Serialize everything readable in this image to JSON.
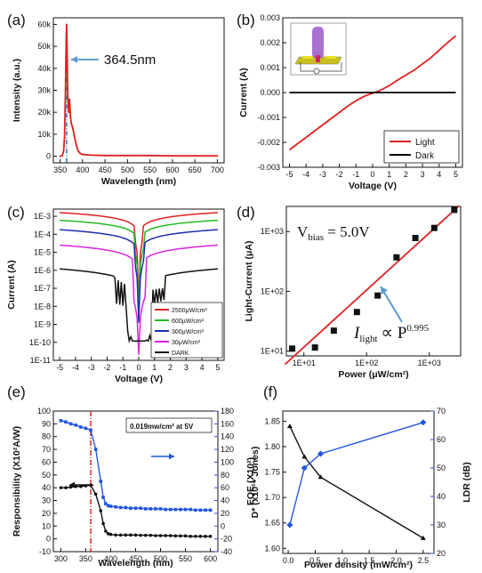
{
  "chart_data": [
    {
      "id": "a",
      "panel_label": "(a)",
      "type": "line",
      "xlabel": "Wavelength (nm)",
      "ylabel": "Intensity (a.u.)",
      "xlim": [
        335,
        715
      ],
      "ylim": [
        -3000,
        63000
      ],
      "x_ticks": [
        350,
        400,
        450,
        500,
        550,
        600,
        650,
        700
      ],
      "y_ticks": [
        0,
        10000,
        20000,
        30000,
        40000,
        50000,
        60000
      ],
      "y_tick_labels": [
        "0",
        "10k",
        "20k",
        "30k",
        "40k",
        "50k",
        "60k"
      ],
      "annotation": "364.5nm",
      "peak_x": 364.5,
      "colors": {
        "line": "#e02020",
        "peak_marker": "#3a78c8",
        "arrow": "#5b9bd5"
      },
      "series": [
        {
          "x": [
            350,
            355,
            358,
            360,
            362,
            363.5,
            364.5,
            365.5,
            367,
            369,
            371,
            373,
            375,
            378,
            382,
            386,
            390,
            395,
            400,
            420,
            450,
            500,
            550,
            600,
            650,
            700
          ],
          "y": [
            0,
            300,
            2500,
            9000,
            30000,
            52000,
            60000,
            50000,
            28000,
            20000,
            26000,
            18000,
            15000,
            13000,
            9000,
            5000,
            2500,
            1200,
            800,
            500,
            300,
            300,
            300,
            200,
            200,
            200
          ]
        }
      ]
    },
    {
      "id": "b",
      "panel_label": "(b)",
      "type": "line",
      "xlabel": "Voltage (V)",
      "ylabel": "Current (A)",
      "xlim": [
        -5.4,
        5.4
      ],
      "ylim": [
        -0.003,
        0.003
      ],
      "x_ticks": [
        -5,
        -4,
        -3,
        -2,
        -1,
        0,
        1,
        2,
        3,
        4,
        5
      ],
      "y_ticks": [
        -0.003,
        -0.002,
        -0.001,
        0.0,
        0.001,
        0.002,
        0.003
      ],
      "y_tick_labels": [
        "-0.003",
        "-0.002",
        "-0.001",
        "0.000",
        "0.001",
        "0.002",
        "0.003"
      ],
      "legend_position": "bottom-right",
      "series": [
        {
          "name": "Light",
          "color": "#e02020",
          "x": [
            -5,
            -4.5,
            -4,
            -3.5,
            -3,
            -2.5,
            -2,
            -1.5,
            -1,
            -0.5,
            0,
            0.5,
            1,
            1.5,
            2,
            2.5,
            3,
            3.5,
            4,
            4.5,
            5
          ],
          "y": [
            -0.0023,
            -0.00205,
            -0.0018,
            -0.00155,
            -0.0013,
            -0.00105,
            -0.0008,
            -0.00055,
            -0.00033,
            -0.00015,
            -3e-05,
            0.0001,
            0.00028,
            0.0005,
            0.0007,
            0.0009,
            0.00115,
            0.0014,
            0.0017,
            0.002,
            0.00228
          ]
        },
        {
          "name": "Dark",
          "color": "#000000",
          "x": [
            -5,
            5
          ],
          "y": [
            0,
            0
          ]
        }
      ]
    },
    {
      "id": "c",
      "panel_label": "(c)",
      "type": "line",
      "xlabel": "Voltage (V)",
      "ylabel": "Current (A)",
      "y_scale": "log",
      "xlim": [
        -5.4,
        5.4
      ],
      "ylim_exp": [
        -11,
        -2.6
      ],
      "x_ticks": [
        -5,
        -4,
        -3,
        -2,
        -1,
        0,
        1,
        2,
        3,
        4,
        5
      ],
      "y_tick_exps": [
        -11,
        -10,
        -9,
        -8,
        -7,
        -6,
        -5,
        -4,
        -3
      ],
      "y_tick_labels": [
        "1E-11",
        "1E-10",
        "1E-9",
        "1E-8",
        "1E-7",
        "1E-6",
        "1E-5",
        "1E-4",
        "1E-3"
      ],
      "legend_position": "bottom-right",
      "series": [
        {
          "name": "2500μW/cm²",
          "color": "#e02020",
          "params": {
            "top": 0.0016,
            "floor": 5e-05,
            "scale": 0.25,
            "power": 0.6
          }
        },
        {
          "name": "600μW/cm²",
          "color": "#22bb22",
          "params": {
            "top": 0.0006,
            "floor": 1.5e-05,
            "scale": 0.3,
            "power": 0.6
          }
        },
        {
          "name": "300μW/cm²",
          "color": "#1a2fb0",
          "params": {
            "top": 0.00018,
            "floor": 3e-06,
            "scale": 0.3,
            "power": 0.65
          }
        },
        {
          "name": "30μW/cm²",
          "color": "#dd22dd",
          "params": {
            "top": 2.5e-05,
            "floor": 3e-08,
            "scale": 0.4,
            "power": 0.7
          }
        },
        {
          "name": "DARK",
          "color": "#111111",
          "params": {
            "top": 1.2e-06,
            "floor": 1e-09,
            "scale": 0.8,
            "power": 0.8
          }
        }
      ]
    },
    {
      "id": "d",
      "panel_label": "(d)",
      "type": "scatter",
      "xlabel": "Power (μW/cm²)",
      "ylabel": "Light-Current (μA)",
      "x_scale": "log",
      "y_scale": "log",
      "xlim_exp": [
        0.72,
        3.5
      ],
      "ylim_exp": [
        0.92,
        3.42
      ],
      "x_tick_exps": [
        1,
        2,
        3
      ],
      "x_tick_labels": [
        "1E+01",
        "1E+02",
        "1E+03"
      ],
      "y_tick_exps": [
        1,
        2,
        3
      ],
      "y_tick_labels": [
        "1E+01",
        "1E+02",
        "1E+03"
      ],
      "vbias_label": "V",
      "vbias_sub": "bias",
      "vbias_value": " = 5.0V",
      "fit_label_I": "I",
      "fit_label_sub": "light",
      "fit_label_prop": "∝ P",
      "fit_label_exp": "0.995",
      "points": [
        {
          "x": 6.5,
          "y": 11
        },
        {
          "x": 15,
          "y": 11.5
        },
        {
          "x": 30,
          "y": 22
        },
        {
          "x": 70,
          "y": 45
        },
        {
          "x": 150,
          "y": 85
        },
        {
          "x": 300,
          "y": 370
        },
        {
          "x": 600,
          "y": 780
        },
        {
          "x": 1200,
          "y": 1150
        },
        {
          "x": 2500,
          "y": 2300
        }
      ],
      "fit": {
        "x": [
          5,
          3000
        ],
        "y": [
          6,
          2700
        ]
      },
      "colors": {
        "points": "#111111",
        "fit": "#e02020",
        "arrow": "#5b9bd5"
      }
    },
    {
      "id": "e",
      "panel_label": "(e)",
      "type": "line",
      "xlabel": "Wavelength (nm)",
      "ylabel": "Responsibility (X10²A/W)",
      "ylabel2": "EQE (X10²)",
      "xlim": [
        285,
        615
      ],
      "ylim": [
        -10,
        100
      ],
      "ylim2": [
        -40,
        180
      ],
      "x_ticks": [
        300,
        350,
        400,
        450,
        500,
        550,
        600
      ],
      "y_ticks": [
        -10,
        0,
        10,
        20,
        30,
        40,
        50,
        60,
        70,
        80,
        90,
        100
      ],
      "y2_ticks": [
        -40,
        -20,
        0,
        20,
        40,
        60,
        80,
        100,
        120,
        140,
        160,
        180
      ],
      "annotation": "0.019mw/cm² at 5V",
      "vline_x": 360,
      "colors": {
        "left": "#111111",
        "right": "#2255dd",
        "vline": "#dd2222"
      },
      "series": [
        {
          "name": "Responsibility",
          "axis": "left",
          "color": "#111111",
          "x": [
            300,
            310,
            320,
            330,
            340,
            350,
            360,
            370,
            380,
            385,
            390,
            395,
            400,
            410,
            420,
            430,
            440,
            450,
            460,
            470,
            480,
            490,
            500,
            510,
            520,
            530,
            540,
            550,
            560,
            570,
            580,
            590,
            600
          ],
          "y": [
            40,
            40,
            40.5,
            41,
            41,
            41.5,
            42,
            35,
            22,
            12,
            6,
            4,
            3.5,
            3,
            3,
            3,
            3,
            3,
            2.8,
            2.8,
            2.8,
            2.5,
            2.5,
            2.5,
            2.5,
            2.3,
            2.3,
            2.3,
            2,
            2,
            2,
            2,
            2
          ]
        },
        {
          "name": "EQE",
          "axis": "right",
          "color": "#2255dd",
          "x": [
            300,
            310,
            320,
            330,
            340,
            350,
            360,
            370,
            380,
            385,
            390,
            395,
            400,
            410,
            420,
            430,
            440,
            450,
            460,
            470,
            480,
            490,
            500,
            510,
            520,
            530,
            540,
            550,
            560,
            570,
            580,
            590,
            600
          ],
          "y": [
            165,
            163,
            160,
            158,
            155,
            153,
            150,
            120,
            70,
            45,
            35,
            32,
            31,
            30,
            29,
            29,
            28,
            28,
            28,
            27,
            27,
            27,
            27,
            26,
            26,
            26,
            26,
            26,
            26,
            25,
            25,
            25,
            25
          ]
        }
      ]
    },
    {
      "id": "f",
      "panel_label": "(f)",
      "type": "line",
      "xlabel": "Power density (mW/cm²)",
      "ylabel": "D* (x10¹⁶ Jones)",
      "ylabel2": "LDR (dB)",
      "xlim": [
        -0.1,
        2.7
      ],
      "ylim": [
        1.59,
        1.87
      ],
      "ylim2": [
        20,
        70
      ],
      "x_ticks": [
        0.0,
        0.5,
        1.0,
        1.5,
        2.0,
        2.5
      ],
      "x_tick_labels": [
        "0.0",
        "0.5",
        "1.0",
        "1.5",
        "2.0",
        "2.5"
      ],
      "y_ticks": [
        1.6,
        1.65,
        1.7,
        1.75,
        1.8,
        1.85
      ],
      "y_tick_labels": [
        "1.60",
        "1.65",
        "1.70",
        "1.75",
        "1.80",
        "1.85"
      ],
      "y2_ticks": [
        20,
        30,
        40,
        50,
        60,
        70
      ],
      "colors": {
        "left": "#111111",
        "right": "#2255dd"
      },
      "series": [
        {
          "name": "D*",
          "axis": "left",
          "color": "#111111",
          "x": [
            0.03,
            0.3,
            0.6,
            2.5
          ],
          "y": [
            1.84,
            1.78,
            1.74,
            1.62
          ]
        },
        {
          "name": "LDR",
          "axis": "right",
          "color": "#2255dd",
          "x": [
            0.03,
            0.3,
            0.6,
            2.5
          ],
          "y": [
            30,
            50,
            55,
            66
          ]
        }
      ]
    }
  ]
}
